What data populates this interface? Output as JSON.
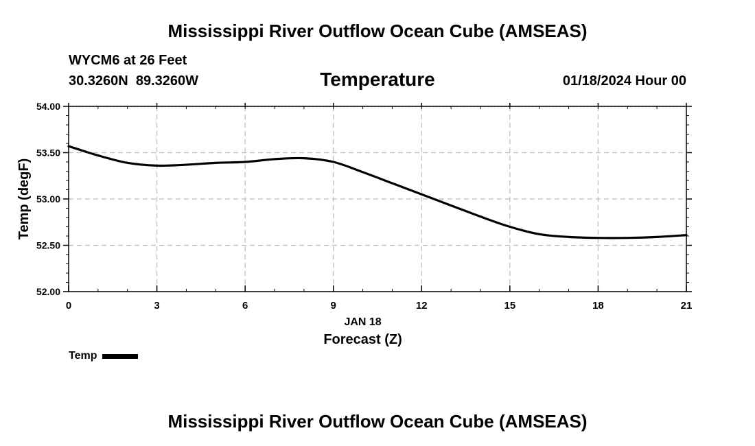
{
  "header": {
    "main_title": "Mississippi River Outflow Ocean Cube (AMSEAS)",
    "station": "WYCM6 at 26 Feet",
    "coordinates": "30.3260N  89.3260W",
    "subtitle": "Temperature",
    "datetime": "01/18/2024 Hour 00"
  },
  "footer": {
    "title": "Mississippi River Outflow Ocean Cube (AMSEAS)"
  },
  "chart_data": {
    "type": "line",
    "title": "Temperature",
    "xlabel": "Forecast (Z)",
    "xlabel_date": "JAN 18",
    "ylabel": "Temp (degF)",
    "xlim": [
      0,
      21
    ],
    "ylim": [
      52.0,
      54.0
    ],
    "xticks": [
      0,
      3,
      6,
      9,
      12,
      15,
      18,
      21
    ],
    "xtick_labels": [
      "0",
      "3",
      "6",
      "9",
      "12",
      "15",
      "18",
      "21"
    ],
    "yticks": [
      52.0,
      52.5,
      53.0,
      53.5,
      54.0
    ],
    "ytick_labels": [
      "52.00",
      "52.50",
      "53.00",
      "53.50",
      "54.00"
    ],
    "grid": true,
    "legend": "bottom-left",
    "series": [
      {
        "name": "Temp",
        "color": "#000000",
        "x": [
          0,
          1,
          2,
          3,
          4,
          5,
          6,
          7,
          8,
          9,
          10,
          11,
          12,
          13,
          14,
          15,
          16,
          17,
          18,
          19,
          20,
          21
        ],
        "y": [
          53.57,
          53.47,
          53.39,
          53.36,
          53.37,
          53.39,
          53.4,
          53.43,
          53.44,
          53.4,
          53.29,
          53.17,
          53.05,
          52.93,
          52.81,
          52.7,
          52.62,
          52.59,
          52.58,
          52.58,
          52.59,
          52.61
        ]
      }
    ]
  }
}
